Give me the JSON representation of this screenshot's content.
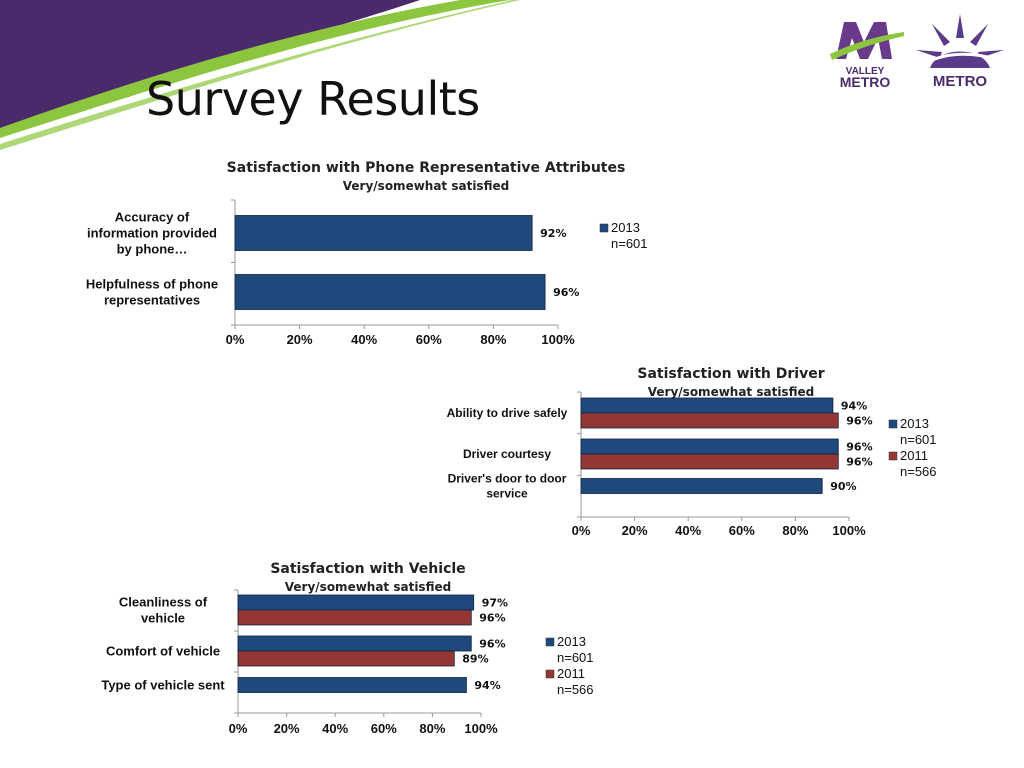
{
  "slide": {
    "title": "Survey Results",
    "logo_left_text": [
      "VALLEY",
      "METRO"
    ],
    "logo_right_text": "METRO"
  },
  "colors": {
    "series_2013": "#1f497d",
    "series_2011": "#943634",
    "accent_purple": "#4a2a6a",
    "accent_green": "#8cc63f"
  },
  "chart_data": [
    {
      "id": "phone",
      "type": "bar",
      "orientation": "horizontal",
      "title": "Satisfaction with Phone Representative Attributes",
      "subtitle": "Very/somewhat satisfied",
      "categories": [
        "Accuracy of information provided by phone…",
        "Helpfulness of phone representatives"
      ],
      "series": [
        {
          "name": "2013",
          "values": [
            92,
            96
          ],
          "labels": [
            "92%",
            "96%"
          ]
        }
      ],
      "legend": [
        [
          "2013",
          "n=601"
        ]
      ],
      "xlim": [
        0,
        100
      ],
      "xticks": [
        "0%",
        "20%",
        "40%",
        "60%",
        "80%",
        "100%"
      ],
      "legend_position": "right"
    },
    {
      "id": "driver",
      "type": "bar",
      "orientation": "horizontal",
      "title": "Satisfaction with Driver",
      "subtitle": "Very/somewhat satisfied",
      "categories": [
        "Ability to drive safely",
        "Driver courtesy",
        "Driver's door to door service"
      ],
      "series": [
        {
          "name": "2013",
          "values": [
            94,
            96,
            90
          ],
          "labels": [
            "94%",
            "96%",
            "90%"
          ]
        },
        {
          "name": "2011",
          "values": [
            96,
            96,
            null
          ],
          "labels": [
            "96%",
            "96%",
            ""
          ]
        }
      ],
      "legend": [
        [
          "2013",
          "n=601"
        ],
        [
          "2011",
          "n=566"
        ]
      ],
      "xlim": [
        0,
        100
      ],
      "xticks": [
        "0%",
        "20%",
        "40%",
        "60%",
        "80%",
        "100%"
      ],
      "legend_position": "right"
    },
    {
      "id": "vehicle",
      "type": "bar",
      "orientation": "horizontal",
      "title": "Satisfaction with Vehicle",
      "subtitle": "Very/somewhat satisfied",
      "categories": [
        "Cleanliness of vehicle",
        "Comfort of vehicle",
        "Type of vehicle sent"
      ],
      "series": [
        {
          "name": "2013",
          "values": [
            97,
            96,
            94
          ],
          "labels": [
            "97%",
            "96%",
            "94%"
          ]
        },
        {
          "name": "2011",
          "values": [
            96,
            89,
            null
          ],
          "labels": [
            "96%",
            "89%",
            ""
          ]
        }
      ],
      "legend": [
        [
          "2013",
          "n=601"
        ],
        [
          "2011",
          "n=566"
        ]
      ],
      "xlim": [
        0,
        100
      ],
      "xticks": [
        "0%",
        "20%",
        "40%",
        "60%",
        "80%",
        "100%"
      ],
      "legend_position": "right"
    }
  ]
}
